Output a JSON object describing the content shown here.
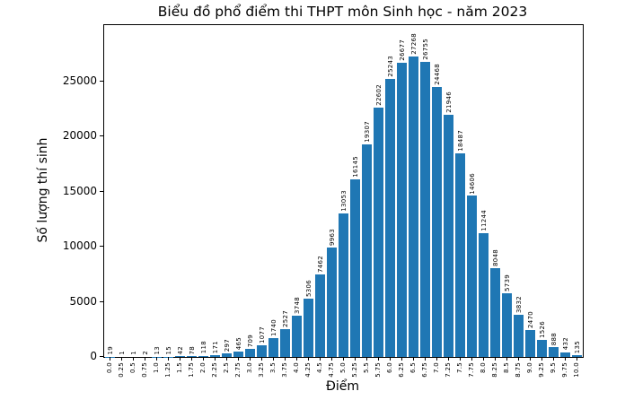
{
  "chart_data": {
    "type": "bar",
    "title": "Biểu đồ phổ điểm thi THPT môn Sinh học - năm 2023",
    "xlabel": "Điểm",
    "ylabel": "Số lượng thí sinh",
    "categories": [
      "0.0",
      "0.25",
      "0.5",
      "0.75",
      "1.0",
      "1.25",
      "1.5",
      "1.75",
      "2.0",
      "2.25",
      "2.5",
      "2.75",
      "3.0",
      "3.25",
      "3.5",
      "3.75",
      "4.0",
      "4.25",
      "4.5",
      "4.75",
      "5.0",
      "5.25",
      "5.5",
      "5.75",
      "6.0",
      "6.25",
      "6.5",
      "6.75",
      "7.0",
      "7.25",
      "7.5",
      "7.75",
      "8.0",
      "8.25",
      "8.5",
      "8.75",
      "9.0",
      "9.25",
      "9.5",
      "9.75",
      "10.0"
    ],
    "values": [
      19,
      1,
      1,
      2,
      13,
      15,
      42,
      78,
      118,
      171,
      297,
      465,
      709,
      1077,
      1740,
      2527,
      3748,
      5306,
      7462,
      9963,
      13053,
      16145,
      19307,
      22602,
      25243,
      26677,
      27268,
      26755,
      24468,
      21946,
      18487,
      14606,
      11244,
      8048,
      5739,
      3832,
      2470,
      1526,
      888,
      432,
      135
    ],
    "bar_value_labels_shown": true,
    "yticks": [
      0,
      5000,
      10000,
      15000,
      20000,
      25000
    ],
    "ylim": [
      0,
      30100
    ],
    "grid": false,
    "legend": null,
    "bar_color": "#1f77b4",
    "axis_color": "#000000",
    "background_color": "#ffffff",
    "text_color": "#000000"
  }
}
